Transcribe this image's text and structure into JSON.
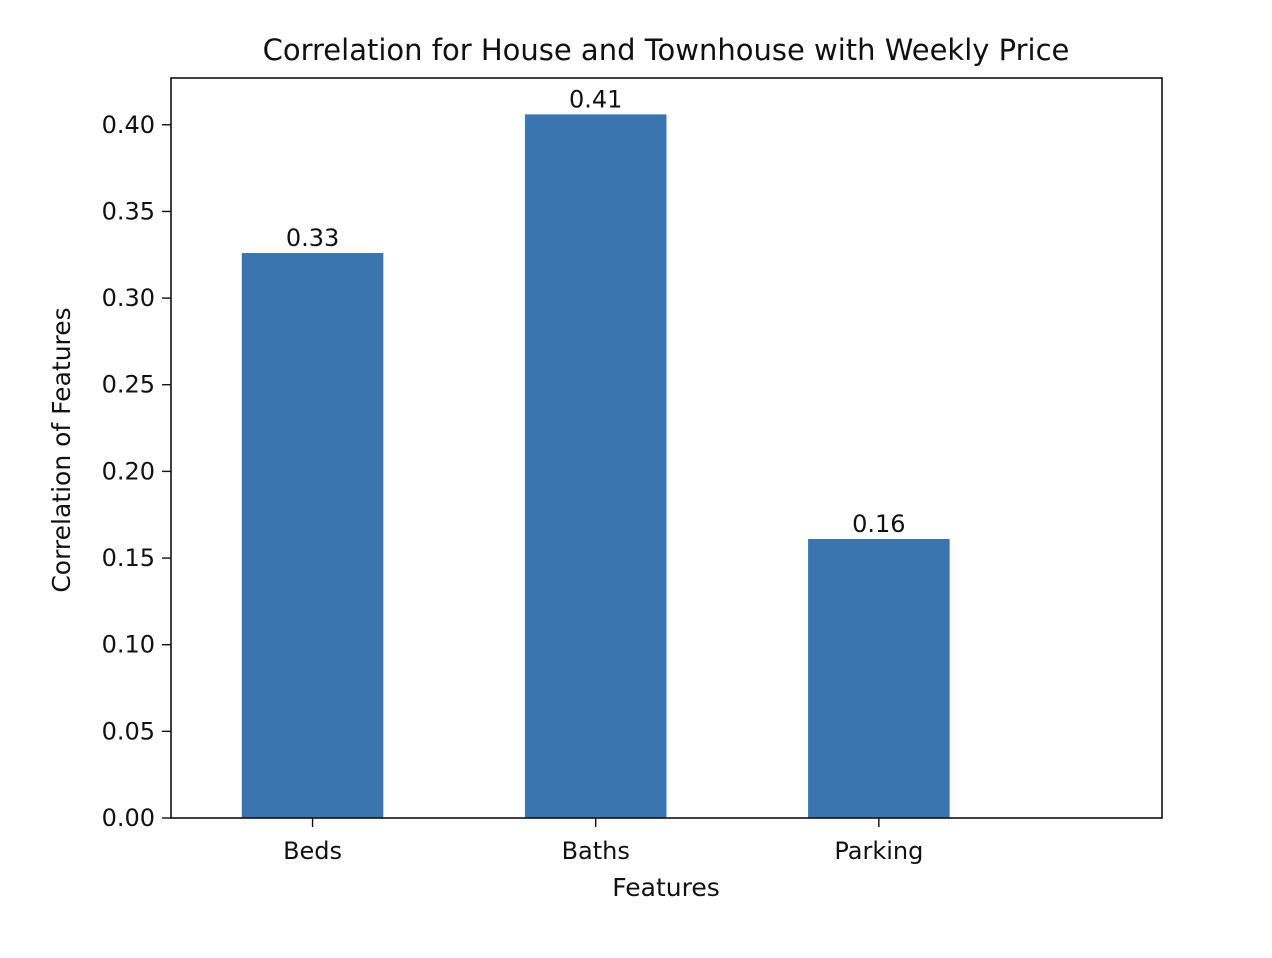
{
  "chart_data": {
    "type": "bar",
    "title": "Correlation for House and Townhouse with Weekly Price",
    "xlabel": "Features",
    "ylabel": "Correlation of Features",
    "categories": [
      "Beds",
      "Baths",
      "Parking"
    ],
    "values": [
      0.326,
      0.406,
      0.161
    ],
    "data_labels": [
      "0.33",
      "0.41",
      "0.16"
    ],
    "ylim": [
      0,
      0.427
    ],
    "yticks": [
      0.0,
      0.05,
      0.1,
      0.15,
      0.2,
      0.25,
      0.3,
      0.35,
      0.4
    ],
    "ytick_labels": [
      "0.00",
      "0.05",
      "0.10",
      "0.15",
      "0.20",
      "0.25",
      "0.30",
      "0.35",
      "0.40"
    ],
    "bar_color": "#3b75af",
    "grid": false,
    "legend": "none"
  }
}
